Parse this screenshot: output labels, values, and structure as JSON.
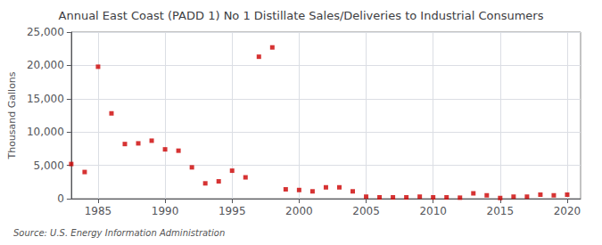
{
  "chart_data": {
    "type": "scatter",
    "title": "Annual East Coast (PADD 1) No 1 Distillate Sales/Deliveries to Industrial Consumers",
    "ylabel": "Thousand Gallons",
    "annotations": [
      "Source: U.S. Energy Information Administration"
    ],
    "x": [
      1983,
      1984,
      1985,
      1986,
      1987,
      1988,
      1989,
      1990,
      1991,
      1992,
      1993,
      1994,
      1995,
      1996,
      1997,
      1998,
      1999,
      2000,
      2001,
      2002,
      2003,
      2004,
      2005,
      2006,
      2007,
      2008,
      2009,
      2010,
      2011,
      2012,
      2013,
      2014,
      2015,
      2016,
      2017,
      2018,
      2019,
      2020
    ],
    "values": [
      5200,
      4000,
      19800,
      12800,
      8200,
      8300,
      8700,
      7400,
      7200,
      4700,
      2300,
      2600,
      4200,
      3200,
      21300,
      22700,
      1400,
      1300,
      1100,
      1700,
      1700,
      1100,
      300,
      200,
      200,
      200,
      300,
      200,
      200,
      150,
      800,
      500,
      100,
      300,
      300,
      600,
      500,
      600
    ],
    "color": "#cc0000",
    "marker": "square",
    "xlim": [
      1983,
      2021
    ],
    "xticks": [
      1985,
      1990,
      1995,
      2000,
      2005,
      2010,
      2015,
      2020
    ],
    "ylim": [
      0,
      25000
    ],
    "yticks": [
      0,
      {
        "value": 5000,
        "label": "5,000"
      },
      {
        "value": 10000,
        "label": "10,000"
      },
      {
        "value": 15000,
        "label": "15,000"
      },
      {
        "value": 20000,
        "label": "20,000"
      },
      {
        "value": 25000,
        "label": "25,000"
      }
    ],
    "grid": true
  }
}
